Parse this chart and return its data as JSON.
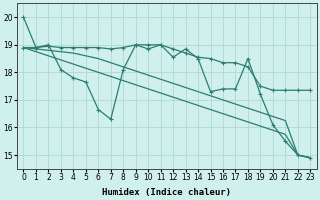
{
  "xlabel": "Humidex (Indice chaleur)",
  "xlim": [
    -0.5,
    23.5
  ],
  "ylim": [
    14.5,
    20.5
  ],
  "yticks": [
    15,
    16,
    17,
    18,
    19,
    20
  ],
  "xticks": [
    0,
    1,
    2,
    3,
    4,
    5,
    6,
    7,
    8,
    9,
    10,
    11,
    12,
    13,
    14,
    15,
    16,
    17,
    18,
    19,
    20,
    21,
    22,
    23
  ],
  "bg_color": "#cff0ec",
  "grid_color": "#b0d8d4",
  "line_color": "#2e7d72",
  "figsize": [
    3.2,
    2.0
  ],
  "dpi": 100,
  "line1": [
    20.0,
    18.9,
    19.0,
    18.1,
    17.8,
    17.65,
    16.65,
    16.3,
    18.1,
    19.0,
    18.85,
    19.0,
    18.55,
    18.85,
    18.5,
    17.3,
    17.4,
    17.4,
    18.5,
    17.2,
    16.1,
    15.5,
    15.0,
    14.9
  ],
  "line2": [
    18.9,
    18.9,
    18.95,
    18.9,
    18.9,
    18.9,
    18.9,
    18.85,
    18.9,
    19.0,
    19.0,
    19.0,
    18.85,
    18.7,
    18.55,
    18.5,
    18.35,
    18.35,
    18.2,
    17.5,
    17.35,
    17.35,
    17.35,
    17.35
  ],
  "line3": [
    18.9,
    18.85,
    18.8,
    18.75,
    18.7,
    18.6,
    18.5,
    18.35,
    18.2,
    18.05,
    17.9,
    17.75,
    17.6,
    17.45,
    17.3,
    17.15,
    17.0,
    16.85,
    16.7,
    16.55,
    16.4,
    16.25,
    15.0,
    14.9
  ],
  "line4": [
    18.9,
    18.75,
    18.6,
    18.45,
    18.3,
    18.15,
    18.0,
    17.85,
    17.7,
    17.55,
    17.4,
    17.25,
    17.1,
    16.95,
    16.8,
    16.65,
    16.5,
    16.35,
    16.2,
    16.05,
    15.9,
    15.75,
    15.0,
    14.9
  ]
}
